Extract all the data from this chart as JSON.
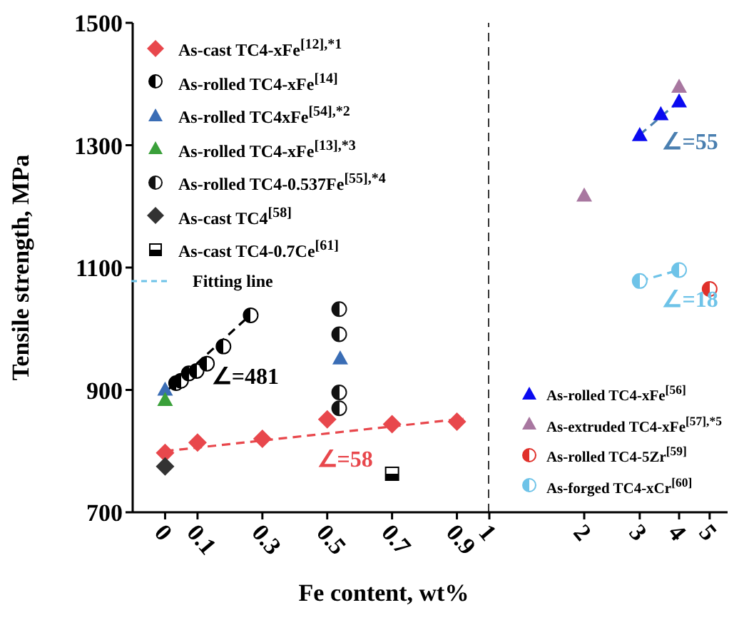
{
  "chart_data": [
    {
      "type": "scatter",
      "xlabel": "Fe content, wt%",
      "ylabel": "Tensile strength, MPa",
      "xlim": [
        -0.1,
        1
      ],
      "xticks": [
        0,
        0.1,
        0.3,
        0.5,
        0.7,
        0.9
      ],
      "ylim": [
        700,
        1500
      ],
      "yticks": [
        700,
        900,
        1100,
        1300,
        1500
      ],
      "legend": "top left",
      "grid": false,
      "series": [
        {
          "name": "As-cast TC4-xFe$^{[12],*1}$",
          "type": "scatter",
          "marker": "diamond",
          "color": "#e8474c",
          "x": [
            0,
            0.1,
            0.3,
            0.5,
            0.7,
            0.9
          ],
          "values": [
            797,
            814,
            820,
            852,
            844,
            848
          ]
        },
        {
          "name": "As-rolled TC4-xFe$^{[14]}$",
          "type": "scatter",
          "marker": "circle",
          "color": "#000000",
          "x": [
            0.034,
            0.049,
            0.073,
            0.097,
            0.129,
            0.18,
            0.264
          ],
          "values": [
            911,
            915,
            927,
            931,
            943,
            971,
            1022
          ]
        },
        {
          "name": "As-rolled TC4xFe$^{[54],*2}$",
          "type": "scatter",
          "marker": "triangle",
          "color": "#3a6db5",
          "x": [
            0,
            0.54
          ],
          "values": [
            901,
            952
          ]
        },
        {
          "name": "As-rolled TC4-xFe$^{[13],*3}$",
          "type": "scatter",
          "marker": "triangle",
          "color": "#3aa03a",
          "x": [
            0
          ],
          "values": [
            884
          ]
        },
        {
          "name": "As-rolled TC4-0.537Fe$^{[55],*4}$",
          "type": "scatter",
          "marker": "circle",
          "color": "#111111",
          "x": [
            0.537,
            0.537,
            0.537,
            0.537
          ],
          "values": [
            1032,
            991,
            896,
            870
          ]
        },
        {
          "name": "As-cast TC4$^{[58]}$",
          "type": "scatter",
          "marker": "diamond",
          "color": "#333333",
          "x": [
            0
          ],
          "values": [
            775
          ]
        },
        {
          "name": "As-cast TC4-0.7Ce$^{[61]}$",
          "type": "scatter",
          "marker": "square",
          "color": "#000000",
          "x": [
            0.7
          ],
          "values": [
            763
          ]
        },
        {
          "type": "line",
          "marker": "none",
          "line_style": "dashed",
          "color": "#000000",
          "x": [
            0,
            0.27
          ],
          "values": [
            896,
            1026
          ]
        },
        {
          "type": "line",
          "marker": "none",
          "line_style": "dashed",
          "color": "#e8474c",
          "x": [
            0,
            0.92
          ],
          "values": [
            800,
            853
          ]
        }
      ],
      "annotations": [
        "∠=481",
        "∠=58",
        "Fitting line"
      ],
      "ref_lines": [
        {
          "axis": "x",
          "value": 1,
          "line_style": "dashed",
          "color": "#333333"
        }
      ]
    },
    {
      "type": "scatter",
      "xlim": [
        1,
        5.7
      ],
      "xticks": [
        1,
        2,
        3,
        4,
        5
      ],
      "log": "x",
      "ylim": [
        700,
        1500
      ],
      "yticks": [
        700,
        900,
        1100,
        1300,
        1500
      ],
      "tick_labels": "x",
      "legend": "bottom right",
      "grid": false,
      "series": [
        {
          "name": "As-rolled TC4-xFe$^{[56]}$",
          "type": "scatter",
          "marker": "triangle",
          "color": "#0a0af0",
          "x": [
            3,
            3.5,
            4
          ],
          "values": [
            1317,
            1351,
            1372
          ]
        },
        {
          "name": "As-extruded TC4-xFe$^{[57],*5}$",
          "type": "scatter",
          "marker": "triangle",
          "color": "#a877a0",
          "x": [
            2,
            4
          ],
          "values": [
            1218,
            1396
          ]
        },
        {
          "name": "As-rolled TC4-5Zr$^{[59]}$",
          "type": "scatter",
          "marker": "circle",
          "color": "#e0302a",
          "x": [
            5
          ],
          "values": [
            1065
          ]
        },
        {
          "name": "As-forged TC4-xCr$^{[60]}$",
          "type": "scatter",
          "marker": "circle",
          "color": "#6ec3e8",
          "x": [
            3,
            4
          ],
          "values": [
            1078,
            1096
          ]
        },
        {
          "type": "line",
          "marker": "none",
          "line_style": "dashed",
          "color": "#4a7fb0",
          "x": [
            3,
            4
          ],
          "values": [
            1317,
            1372
          ]
        },
        {
          "type": "line",
          "marker": "none",
          "line_style": "dashed",
          "color": "#6ec3e8",
          "x": [
            3,
            4
          ],
          "values": [
            1078,
            1096
          ]
        }
      ],
      "annotations": [
        "∠=55",
        "∠=18"
      ]
    }
  ]
}
